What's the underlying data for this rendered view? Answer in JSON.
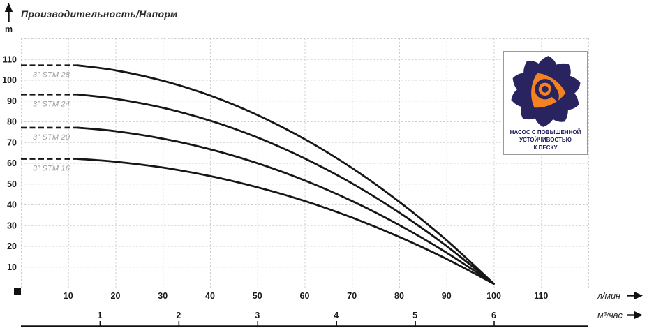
{
  "chart_data": {
    "type": "line",
    "title": "Производительность/Напорм",
    "ylabel": "m",
    "xlabel_primary": "л/мин",
    "xlabel_secondary": "м³/час",
    "xlim": [
      0,
      120
    ],
    "ylim": [
      0,
      120
    ],
    "grid": true,
    "y_ticks": [
      10,
      20,
      30,
      40,
      50,
      60,
      70,
      80,
      90,
      100,
      110
    ],
    "x_ticks_primary": [
      10,
      20,
      30,
      40,
      50,
      60,
      70,
      80,
      90,
      100,
      110
    ],
    "x_ticks_secondary": [
      1,
      2,
      3,
      4,
      5,
      6
    ],
    "lmin_per_m3h": 16.667,
    "series": [
      {
        "name": "3” STM 28",
        "shutoff_head_m": 107,
        "x": [
          12,
          20,
          30,
          40,
          50,
          60,
          70,
          80,
          90,
          100
        ],
        "y": [
          107,
          104.6,
          99.6,
          92.5,
          83.1,
          71.5,
          57.6,
          41.3,
          22.8,
          1.8
        ]
      },
      {
        "name": "3” STM 24",
        "shutoff_head_m": 93,
        "x": [
          12,
          20,
          30,
          40,
          50,
          60,
          70,
          80,
          90,
          100
        ],
        "y": [
          93,
          90.9,
          86.6,
          80.4,
          72.3,
          62.2,
          50.2,
          36.1,
          20.0,
          1.8
        ]
      },
      {
        "name": "3” STM 20",
        "shutoff_head_m": 77,
        "x": [
          12,
          20,
          30,
          40,
          50,
          60,
          70,
          80,
          90,
          100
        ],
        "y": [
          77,
          75.3,
          71.7,
          66.6,
          59.9,
          51.6,
          41.7,
          30.1,
          16.8,
          1.8
        ]
      },
      {
        "name": "3” STM 16",
        "shutoff_head_m": 62,
        "x": [
          12,
          20,
          30,
          40,
          50,
          60,
          70,
          80,
          90,
          100
        ],
        "y": [
          62,
          60.6,
          57.8,
          53.7,
          48.3,
          41.7,
          33.7,
          24.4,
          13.8,
          1.8
        ]
      }
    ]
  },
  "badge": {
    "lines": [
      "НАСОС С ПОВЫШЕННОЙ",
      "УСТОЙЧИВОСТЬЮ",
      "К ПЕСКУ"
    ]
  },
  "colors": {
    "curve": "#161616",
    "grid": "#cdcdcd",
    "grid_edge": "#b5b5b5",
    "series_label": "#9e9e9e",
    "tick_label": "#1a1a1a",
    "badge_navy": "#29245f",
    "badge_orange": "#f58220"
  }
}
